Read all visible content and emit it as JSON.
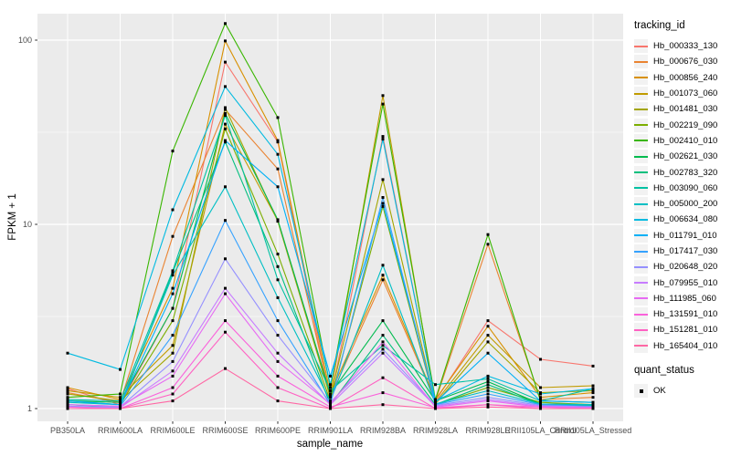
{
  "figure": {
    "background": "#FFFFFF",
    "panel_background": "#EBEBEB",
    "grid_color": "#FFFFFF",
    "tick_color": "#333333",
    "tick_label_color": "#4D4D4D",
    "point_color": "#000000"
  },
  "axes": {
    "x_title": "sample_name",
    "y_title": "FPKM + 1",
    "y_tick_labels": [
      "1",
      "10",
      "100"
    ],
    "y_tick_values": [
      1,
      10,
      100
    ],
    "y_minor_values": [
      3.1623,
      31.623
    ]
  },
  "legend": {
    "tracking_title": "tracking_id",
    "quant_title": "quant_status",
    "quant_items": [
      {
        "label": "OK",
        "shape": "square",
        "color": "#000000"
      }
    ]
  },
  "chart_data": {
    "type": "line",
    "title": "",
    "xlabel": "sample_name",
    "ylabel": "FPKM + 1",
    "y_scale": "log10",
    "ylim": [
      1,
      140
    ],
    "grid": true,
    "legend_position": "right",
    "point_shape": "filled-square",
    "categories": [
      "PB350LA",
      "RRIM600LA",
      "RRIM600LE",
      "RRIM600SE",
      "RRIM600PE",
      "RRIM901LA",
      "RRIM928BA",
      "RRIM928LA",
      "RRIM928LE",
      "RRII105LA_Control",
      "RRII105LA_Stressed"
    ],
    "series": [
      {
        "name": "Hb_000333_130",
        "color": "#F8766D",
        "values": [
          1.28,
          1.05,
          3.5,
          76,
          28,
          1.1,
          30,
          1.1,
          3.0,
          1.85,
          1.7
        ]
      },
      {
        "name": "Hb_000676_030",
        "color": "#EA8331",
        "values": [
          1.22,
          1.08,
          8.6,
          42,
          20,
          1.15,
          5.0,
          1.1,
          7.8,
          1.12,
          1.15
        ]
      },
      {
        "name": "Hb_000856_240",
        "color": "#D89000",
        "values": [
          1.3,
          1.12,
          4.5,
          99,
          28.5,
          1.2,
          5.3,
          1.12,
          2.8,
          1.15,
          1.22
        ]
      },
      {
        "name": "Hb_001073_060",
        "color": "#C09B00",
        "values": [
          1.25,
          1.15,
          2.2,
          35,
          10.5,
          1.18,
          50,
          1.08,
          2.5,
          1.3,
          1.33
        ]
      },
      {
        "name": "Hb_001481_030",
        "color": "#A3A500",
        "values": [
          1.2,
          1.1,
          2.0,
          43,
          10.4,
          1.15,
          17.5,
          1.06,
          2.3,
          1.22,
          1.25
        ]
      },
      {
        "name": "Hb_002219_090",
        "color": "#7CAE00",
        "values": [
          1.1,
          1.05,
          3.0,
          33,
          6.9,
          1.1,
          12.5,
          1.05,
          1.3,
          1.08,
          1.05
        ]
      },
      {
        "name": "Hb_002410_010",
        "color": "#39B600",
        "values": [
          1.15,
          1.2,
          25,
          123,
          38,
          1.3,
          45,
          1.12,
          8.8,
          1.1,
          1.08
        ]
      },
      {
        "name": "Hb_002621_030",
        "color": "#00BB4E",
        "values": [
          1.1,
          1.08,
          3.5,
          40,
          10.6,
          1.2,
          3.0,
          1.1,
          1.4,
          1.06,
          1.05
        ]
      },
      {
        "name": "Hb_002783_320",
        "color": "#00BF7D",
        "values": [
          1.05,
          1.02,
          5.5,
          28,
          5.9,
          1.05,
          2.5,
          1.05,
          1.35,
          1.05,
          1.04
        ]
      },
      {
        "name": "Hb_003090_060",
        "color": "#00C1A3",
        "values": [
          1.12,
          1.1,
          5.6,
          39,
          5.0,
          1.25,
          2.2,
          1.35,
          1.45,
          1.1,
          1.28
        ]
      },
      {
        "name": "Hb_005000_200",
        "color": "#00BFC4",
        "values": [
          1.08,
          1.05,
          5.3,
          16,
          4.0,
          1.1,
          6.0,
          1.06,
          1.25,
          1.06,
          1.05
        ]
      },
      {
        "name": "Hb_006634_080",
        "color": "#00BAE0",
        "values": [
          2.0,
          1.63,
          12,
          56,
          24,
          1.35,
          29,
          1.1,
          1.5,
          1.2,
          1.28
        ]
      },
      {
        "name": "Hb_011791_010",
        "color": "#00B0F6",
        "values": [
          1.1,
          1.05,
          4.2,
          28.5,
          16,
          1.5,
          13,
          1.08,
          2.0,
          1.1,
          1.08
        ]
      },
      {
        "name": "Hb_017417_030",
        "color": "#35A2FF",
        "values": [
          1.05,
          1.03,
          2.5,
          10.5,
          3.0,
          1.05,
          14,
          1.05,
          1.2,
          1.05,
          1.03
        ]
      },
      {
        "name": "Hb_020648_020",
        "color": "#9590FF",
        "values": [
          1.03,
          1.02,
          1.8,
          6.5,
          2.5,
          1.08,
          2.1,
          1.04,
          1.15,
          1.04,
          1.02
        ]
      },
      {
        "name": "Hb_079955_010",
        "color": "#C77CFF",
        "values": [
          1.02,
          1.01,
          1.6,
          4.5,
          2.0,
          1.05,
          2.0,
          1.03,
          1.12,
          1.03,
          1.02
        ]
      },
      {
        "name": "Hb_111985_060",
        "color": "#E76BF3",
        "values": [
          1.05,
          1.03,
          1.5,
          4.2,
          1.8,
          1.06,
          2.3,
          1.02,
          1.1,
          1.02,
          1.01
        ]
      },
      {
        "name": "Hb_131591_010",
        "color": "#FA62DB",
        "values": [
          1.02,
          1.0,
          1.3,
          3.0,
          1.5,
          1.02,
          1.22,
          1.01,
          1.05,
          1.02,
          1.0
        ]
      },
      {
        "name": "Hb_151281_010",
        "color": "#FF61C3",
        "values": [
          1.0,
          1.0,
          1.2,
          2.6,
          1.3,
          1.0,
          1.47,
          1.0,
          1.05,
          1.0,
          1.0
        ]
      },
      {
        "name": "Hb_165404_010",
        "color": "#FF67A4",
        "values": [
          1.0,
          1.0,
          1.1,
          1.65,
          1.1,
          1.0,
          1.05,
          1.0,
          1.02,
          1.0,
          1.0
        ]
      }
    ]
  }
}
